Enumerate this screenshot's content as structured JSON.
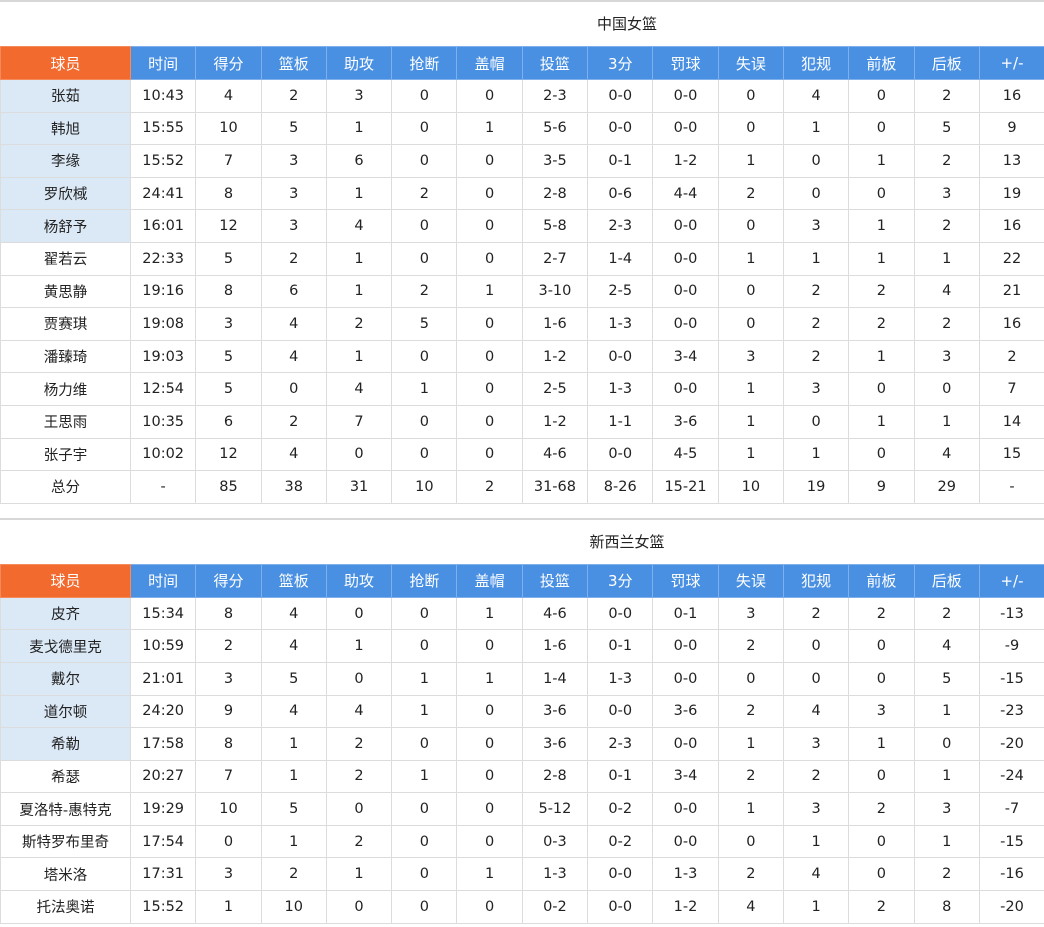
{
  "headers": [
    "球员",
    "时间",
    "得分",
    "篮板",
    "助攻",
    "抢断",
    "盖帽",
    "投篮",
    "3分",
    "罚球",
    "失误",
    "犯规",
    "前板",
    "后板",
    "+/-"
  ],
  "teams": [
    {
      "name": "中国女篮",
      "rows": [
        {
          "cells": [
            "张茹",
            "10:43",
            "4",
            "2",
            "3",
            "0",
            "0",
            "2-3",
            "0-0",
            "0-0",
            "0",
            "4",
            "0",
            "2",
            "16"
          ],
          "highlight": true
        },
        {
          "cells": [
            "韩旭",
            "15:55",
            "10",
            "5",
            "1",
            "0",
            "1",
            "5-6",
            "0-0",
            "0-0",
            "0",
            "1",
            "0",
            "5",
            "9"
          ],
          "highlight": true
        },
        {
          "cells": [
            "李缘",
            "15:52",
            "7",
            "3",
            "6",
            "0",
            "0",
            "3-5",
            "0-1",
            "1-2",
            "1",
            "0",
            "1",
            "2",
            "13"
          ],
          "highlight": true
        },
        {
          "cells": [
            "罗欣棫",
            "24:41",
            "8",
            "3",
            "1",
            "2",
            "0",
            "2-8",
            "0-6",
            "4-4",
            "2",
            "0",
            "0",
            "3",
            "19"
          ],
          "highlight": true
        },
        {
          "cells": [
            "杨舒予",
            "16:01",
            "12",
            "3",
            "4",
            "0",
            "0",
            "5-8",
            "2-3",
            "0-0",
            "0",
            "3",
            "1",
            "2",
            "16"
          ],
          "highlight": true
        },
        {
          "cells": [
            "翟若云",
            "22:33",
            "5",
            "2",
            "1",
            "0",
            "0",
            "2-7",
            "1-4",
            "0-0",
            "1",
            "1",
            "1",
            "1",
            "22"
          ],
          "highlight": false
        },
        {
          "cells": [
            "黄思静",
            "19:16",
            "8",
            "6",
            "1",
            "2",
            "1",
            "3-10",
            "2-5",
            "0-0",
            "0",
            "2",
            "2",
            "4",
            "21"
          ],
          "highlight": false
        },
        {
          "cells": [
            "贾赛琪",
            "19:08",
            "3",
            "4",
            "2",
            "5",
            "0",
            "1-6",
            "1-3",
            "0-0",
            "0",
            "2",
            "2",
            "2",
            "16"
          ],
          "highlight": false
        },
        {
          "cells": [
            "潘臻琦",
            "19:03",
            "5",
            "4",
            "1",
            "0",
            "0",
            "1-2",
            "0-0",
            "3-4",
            "3",
            "2",
            "1",
            "3",
            "2"
          ],
          "highlight": false
        },
        {
          "cells": [
            "杨力维",
            "12:54",
            "5",
            "0",
            "4",
            "1",
            "0",
            "2-5",
            "1-3",
            "0-0",
            "1",
            "3",
            "0",
            "0",
            "7"
          ],
          "highlight": false
        },
        {
          "cells": [
            "王思雨",
            "10:35",
            "6",
            "2",
            "7",
            "0",
            "0",
            "1-2",
            "1-1",
            "3-6",
            "1",
            "0",
            "1",
            "1",
            "14"
          ],
          "highlight": false
        },
        {
          "cells": [
            "张子宇",
            "10:02",
            "12",
            "4",
            "0",
            "0",
            "0",
            "4-6",
            "0-0",
            "4-5",
            "1",
            "1",
            "0",
            "4",
            "15"
          ],
          "highlight": false
        }
      ],
      "total": [
        "总分",
        "-",
        "85",
        "38",
        "31",
        "10",
        "2",
        "31-68",
        "8-26",
        "15-21",
        "10",
        "19",
        "9",
        "29",
        "-"
      ]
    },
    {
      "name": "新西兰女篮",
      "rows": [
        {
          "cells": [
            "皮齐",
            "15:34",
            "8",
            "4",
            "0",
            "0",
            "1",
            "4-6",
            "0-0",
            "0-1",
            "3",
            "2",
            "2",
            "2",
            "-13"
          ],
          "highlight": true
        },
        {
          "cells": [
            "麦戈德里克",
            "10:59",
            "2",
            "4",
            "1",
            "0",
            "0",
            "1-6",
            "0-1",
            "0-0",
            "2",
            "0",
            "0",
            "4",
            "-9"
          ],
          "highlight": true
        },
        {
          "cells": [
            "戴尔",
            "21:01",
            "3",
            "5",
            "0",
            "1",
            "1",
            "1-4",
            "1-3",
            "0-0",
            "0",
            "0",
            "0",
            "5",
            "-15"
          ],
          "highlight": true
        },
        {
          "cells": [
            "道尔顿",
            "24:20",
            "9",
            "4",
            "4",
            "1",
            "0",
            "3-6",
            "0-0",
            "3-6",
            "2",
            "4",
            "3",
            "1",
            "-23"
          ],
          "highlight": true
        },
        {
          "cells": [
            "希勒",
            "17:58",
            "8",
            "1",
            "2",
            "0",
            "0",
            "3-6",
            "2-3",
            "0-0",
            "1",
            "3",
            "1",
            "0",
            "-20"
          ],
          "highlight": true
        },
        {
          "cells": [
            "希瑟",
            "20:27",
            "7",
            "1",
            "2",
            "1",
            "0",
            "2-8",
            "0-1",
            "3-4",
            "2",
            "2",
            "0",
            "1",
            "-24"
          ],
          "highlight": false
        },
        {
          "cells": [
            "夏洛特-惠特克",
            "19:29",
            "10",
            "5",
            "0",
            "0",
            "0",
            "5-12",
            "0-2",
            "0-0",
            "1",
            "3",
            "2",
            "3",
            "-7"
          ],
          "highlight": false
        },
        {
          "cells": [
            "斯特罗布里奇",
            "17:54",
            "0",
            "1",
            "2",
            "0",
            "0",
            "0-3",
            "0-2",
            "0-0",
            "0",
            "1",
            "0",
            "1",
            "-15"
          ],
          "highlight": false
        },
        {
          "cells": [
            "塔米洛",
            "17:31",
            "3",
            "2",
            "1",
            "0",
            "1",
            "1-3",
            "0-0",
            "1-3",
            "2",
            "4",
            "0",
            "2",
            "-16"
          ],
          "highlight": false
        },
        {
          "cells": [
            "托法奥诺",
            "15:52",
            "1",
            "10",
            "0",
            "0",
            "0",
            "0-2",
            "0-0",
            "1-2",
            "4",
            "1",
            "2",
            "8",
            "-20"
          ],
          "highlight": false
        }
      ]
    }
  ],
  "colors": {
    "header_blue": "#4a90e2",
    "player_header_orange": "#f26a2e",
    "starter_highlight": "#dbe8f6"
  }
}
